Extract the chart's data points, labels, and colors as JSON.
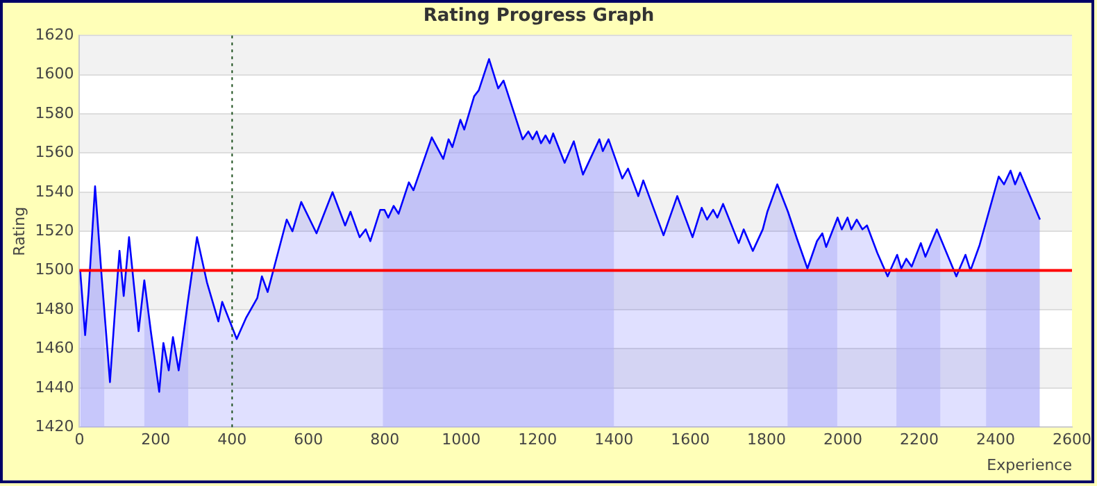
{
  "chart_data": {
    "type": "area",
    "title": "Rating Progress Graph",
    "xlabel": "Experience",
    "ylabel": "Rating",
    "xlim": [
      0,
      2600
    ],
    "xticks": [
      0,
      200,
      400,
      600,
      800,
      1000,
      1200,
      1400,
      1600,
      1800,
      2000,
      2200,
      2400,
      2600
    ],
    "ylim": [
      1420,
      1620
    ],
    "yticks": [
      1420,
      1440,
      1460,
      1480,
      1500,
      1520,
      1540,
      1560,
      1580,
      1600,
      1620
    ],
    "grid": "y",
    "legend": false,
    "series": [
      {
        "color": "#0000ff",
        "x": [
          2,
          15,
          24,
          41,
          57,
          80,
          93,
          105,
          116,
          130,
          155,
          170,
          187,
          209,
          220,
          234,
          245,
          260,
          284,
          308,
          334,
          364,
          374,
          412,
          437,
          466,
          478,
          493,
          543,
          558,
          581,
          621,
          663,
          696,
          710,
          734,
          750,
          762,
          788,
          799,
          809,
          823,
          836,
          863,
          875,
          923,
          953,
          967,
          977,
          998,
          1008,
          1034,
          1046,
          1073,
          1097,
          1111,
          1161,
          1176,
          1187,
          1198,
          1209,
          1221,
          1232,
          1241,
          1271,
          1295,
          1319,
          1362,
          1371,
          1386,
          1422,
          1437,
          1464,
          1477,
          1530,
          1566,
          1606,
          1630,
          1644,
          1660,
          1671,
          1686,
          1727,
          1740,
          1764,
          1790,
          1802,
          1828,
          1856,
          1880,
          1907,
          1932,
          1946,
          1956,
          1986,
          1997,
          2012,
          2022,
          2036,
          2051,
          2063,
          2090,
          2117,
          2142,
          2153,
          2166,
          2180,
          2204,
          2216,
          2246,
          2297,
          2321,
          2334,
          2358,
          2408,
          2422,
          2439,
          2451,
          2464,
          2516
        ],
        "values": [
          1500,
          1467,
          1489,
          1543,
          1500,
          1443,
          1479,
          1510,
          1487,
          1517,
          1469,
          1495,
          1469,
          1438,
          1463,
          1449,
          1466,
          1449,
          1484,
          1517,
          1494,
          1474,
          1484,
          1465,
          1476,
          1486,
          1497,
          1489,
          1526,
          1520,
          1535,
          1519,
          1540,
          1523,
          1530,
          1517,
          1521,
          1515,
          1531,
          1531,
          1527,
          1533,
          1529,
          1545,
          1541,
          1568,
          1557,
          1567,
          1563,
          1577,
          1572,
          1589,
          1592,
          1608,
          1593,
          1597,
          1567,
          1571,
          1567,
          1571,
          1565,
          1569,
          1565,
          1570,
          1555,
          1566,
          1549,
          1567,
          1561,
          1567,
          1547,
          1552,
          1538,
          1546,
          1518,
          1538,
          1517,
          1532,
          1526,
          1531,
          1527,
          1534,
          1514,
          1521,
          1510,
          1521,
          1530,
          1544,
          1530,
          1516,
          1501,
          1515,
          1519,
          1512,
          1527,
          1521,
          1527,
          1521,
          1526,
          1521,
          1523,
          1509,
          1497,
          1508,
          1501,
          1506,
          1502,
          1514,
          1507,
          1521,
          1497,
          1508,
          1500,
          1513,
          1548,
          1544,
          1551,
          1544,
          1550,
          1526
        ]
      }
    ],
    "ref_lines": [
      {
        "axis": "y",
        "value": 1500,
        "color": "#ff0000",
        "line_style": "solid"
      },
      {
        "axis": "x",
        "value": 400,
        "color": "#1a4d1a",
        "line_style": "dotted"
      }
    ],
    "bands": [
      {
        "axis": "x",
        "from": 0,
        "to": 65,
        "color": "#ccccf8"
      },
      {
        "axis": "x",
        "from": 170,
        "to": 285,
        "color": "#ccccf8"
      },
      {
        "axis": "x",
        "from": 795,
        "to": 1400,
        "color": "#ccccf8"
      },
      {
        "axis": "x",
        "from": 1855,
        "to": 1985,
        "color": "#ccccf8"
      },
      {
        "axis": "x",
        "from": 2140,
        "to": 2255,
        "color": "#ccccf8"
      },
      {
        "axis": "x",
        "from": 2375,
        "to": 2515,
        "color": "#ccccf8"
      }
    ]
  }
}
